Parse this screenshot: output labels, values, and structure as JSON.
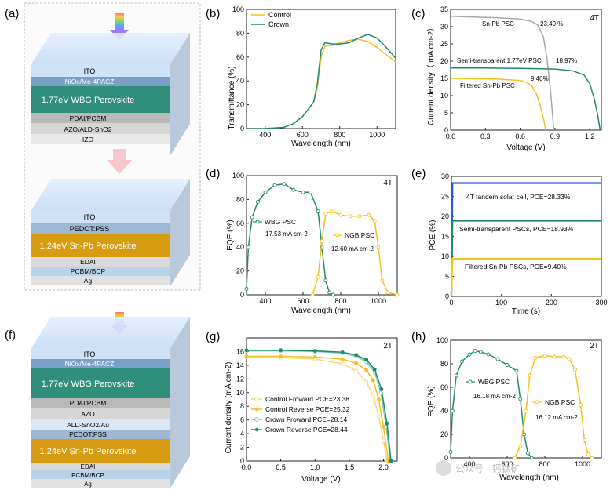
{
  "panels": {
    "a": {
      "letter": "(a)",
      "top_layers": [
        "ITO",
        "NiOx/Me-4PACZ",
        "1.77eV WBG Perovskite",
        "PDAI/PCBM",
        "AZO/ALD-SnO2",
        "IZO"
      ],
      "bottom_layers": [
        "ITO",
        "PEDOT:PSS",
        "1.24eV Sn-Pb Perovskite",
        "EDAI",
        "PCBM/BCP",
        "Ag"
      ]
    },
    "f": {
      "letter": "(f)",
      "layers": [
        "ITO",
        "NiOx/Me-4PACZ",
        "1.77eV WBG Perovskite",
        "PDAI/PCBM",
        "AZO",
        "ALD-SnO2/Au",
        "PEDOT:PSS",
        "1.24eV Sn-Pb Perovskite",
        "EDAI",
        "PCBM/BCP",
        "Ag"
      ]
    },
    "b": {
      "letter": "(b)"
    },
    "c": {
      "letter": "(c)",
      "tag": "4T"
    },
    "d": {
      "letter": "(d)",
      "tag": "4T"
    },
    "e": {
      "letter": "(e)"
    },
    "g": {
      "letter": "(g)",
      "tag": "2T"
    },
    "h": {
      "letter": "(h)",
      "tag": "2T"
    }
  },
  "colors": {
    "gold": "#f5c01a",
    "teal": "#1f8a70",
    "gray": "#a8a8a8",
    "blue": "#2a5bd7"
  },
  "watermark": "公众号 · 钙钛矿",
  "chart_data": [
    {
      "id": "b",
      "type": "line",
      "title": "",
      "xlabel": "Wavelength (nm)",
      "ylabel": "Transmittance (%)",
      "xlim": [
        300,
        1100
      ],
      "ylim": [
        0,
        100
      ],
      "xticks": [
        "400",
        "600",
        "800",
        "1000"
      ],
      "yticks": [
        "0",
        "20",
        "40",
        "60",
        "80",
        "100"
      ],
      "legend": [
        "Control",
        "Crown"
      ],
      "series": [
        {
          "name": "Control",
          "color": "#f5c01a",
          "x": [
            300,
            400,
            500,
            550,
            600,
            640,
            660,
            680,
            700,
            720,
            760,
            800,
            850,
            900,
            950,
            1000,
            1050,
            1100
          ],
          "y": [
            0,
            0,
            1,
            4,
            10,
            18,
            22,
            35,
            60,
            69,
            70,
            72,
            74,
            75,
            73,
            68,
            62,
            56
          ]
        },
        {
          "name": "Crown",
          "color": "#1f8a70",
          "x": [
            300,
            400,
            500,
            550,
            600,
            640,
            660,
            680,
            700,
            720,
            760,
            800,
            850,
            900,
            950,
            1000,
            1050,
            1100
          ],
          "y": [
            0,
            0,
            1,
            4,
            10,
            18,
            22,
            38,
            66,
            72,
            71,
            71,
            72,
            76,
            79,
            76,
            68,
            59
          ]
        }
      ]
    },
    {
      "id": "c",
      "type": "line",
      "title": "",
      "xlabel": "Voltage (V)",
      "ylabel": "Current density（ mA cm-2）",
      "xlim": [
        0,
        1.3
      ],
      "ylim": [
        0,
        35
      ],
      "xticks": [
        "0.0",
        "0.3",
        "0.6",
        "0.9",
        "1.2"
      ],
      "yticks": [
        "0",
        "5",
        "10",
        "15",
        "20",
        "25",
        "30",
        "35"
      ],
      "annotations": [
        "Sn-Pb PSC",
        "23.49 %",
        "Semi-transparent 1.77eV PSC",
        "18.97%",
        "9.40%",
        "Filtered Sn-Pb PSC"
      ],
      "series": [
        {
          "name": "Sn-Pb PSC",
          "color": "#a8a8a8",
          "x": [
            0,
            0.2,
            0.4,
            0.6,
            0.7,
            0.75,
            0.8,
            0.83,
            0.86,
            0.88,
            0.89
          ],
          "y": [
            33,
            32.8,
            32.6,
            32.2,
            31.5,
            30.5,
            27,
            21,
            12,
            4,
            0
          ]
        },
        {
          "name": "Semi-transparent 1.77eV PSC",
          "color": "#1f8a70",
          "x": [
            0,
            0.3,
            0.6,
            0.9,
            1.05,
            1.15,
            1.2,
            1.24,
            1.27,
            1.29
          ],
          "y": [
            18,
            18,
            17.9,
            17.7,
            17.2,
            16,
            13.5,
            9,
            4,
            0
          ]
        },
        {
          "name": "Filtered Sn-Pb PSC",
          "color": "#f5c01a",
          "x": [
            0,
            0.2,
            0.4,
            0.6,
            0.66,
            0.7,
            0.74,
            0.77,
            0.8,
            0.82
          ],
          "y": [
            15,
            14.9,
            14.8,
            14.4,
            13.8,
            12.8,
            10.5,
            7.5,
            3.5,
            0
          ]
        }
      ]
    },
    {
      "id": "d",
      "type": "line",
      "title": "",
      "xlabel": "Wavelength (nm)",
      "ylabel": "EQE (%)",
      "xlim": [
        300,
        1100
      ],
      "ylim": [
        0,
        100
      ],
      "xticks": [
        "400",
        "600",
        "800",
        "1000"
      ],
      "yticks": [
        "0",
        "20",
        "40",
        "60",
        "80",
        "100"
      ],
      "annotations": [
        "WBG PSC",
        "17.53 mA cm-2",
        "NGB PSC",
        "12.60 mA cm-2"
      ],
      "series": [
        {
          "name": "WBG PSC",
          "color": "#1f8a70",
          "x": [
            300,
            310,
            330,
            360,
            400,
            450,
            500,
            550,
            600,
            640,
            680,
            700,
            720,
            740,
            760
          ],
          "y": [
            5,
            40,
            65,
            78,
            86,
            92,
            93,
            88,
            86,
            86,
            70,
            40,
            12,
            2,
            0
          ]
        },
        {
          "name": "NGB PSC",
          "color": "#f5c01a",
          "x": [
            650,
            680,
            700,
            720,
            750,
            800,
            850,
            900,
            950,
            980,
            1000,
            1020,
            1050,
            1100
          ],
          "y": [
            0,
            15,
            45,
            68,
            70,
            67,
            66,
            66,
            67,
            62,
            40,
            12,
            2,
            0
          ]
        }
      ]
    },
    {
      "id": "e",
      "type": "line",
      "title": "",
      "xlabel": "Time (s)",
      "ylabel": "PCE (%)",
      "xlim": [
        0,
        300
      ],
      "ylim": [
        0,
        30
      ],
      "xticks": [
        "0",
        "100",
        "200",
        "300"
      ],
      "yticks": [
        "0",
        "5",
        "10",
        "15",
        "20",
        "25",
        "30"
      ],
      "annotations": [
        "4T tandem solar cell, PCE=28.33%",
        "Semi-transparent PSCs, PCE=18.93%",
        "Filtered Sn-Pb PSCs, PCE=9.40%"
      ],
      "series": [
        {
          "name": "4T tandem solar cell",
          "color": "#2a5bd7",
          "x": [
            0,
            2,
            4,
            300
          ],
          "y": [
            0,
            28.33,
            28.33,
            28.33
          ]
        },
        {
          "name": "Semi-transparent PSCs",
          "color": "#1f8a70",
          "x": [
            0,
            2,
            4,
            300
          ],
          "y": [
            0,
            18.93,
            18.93,
            18.93
          ]
        },
        {
          "name": "Filtered Sn-Pb PSCs",
          "color": "#f5c01a",
          "x": [
            0,
            2,
            4,
            300
          ],
          "y": [
            0,
            9.4,
            9.4,
            9.4
          ]
        }
      ]
    },
    {
      "id": "g",
      "type": "line",
      "title": "",
      "xlabel": "Voltage (V)",
      "ylabel": "Current density (mA cm-2)",
      "xlim": [
        0,
        2.2
      ],
      "ylim": [
        0,
        18
      ],
      "xticks": [
        "0.0",
        "0.5",
        "1.0",
        "1.5",
        "2.0"
      ],
      "yticks": [
        "0",
        "2",
        "4",
        "6",
        "8",
        "10",
        "12",
        "14",
        "16"
      ],
      "legend": [
        "Control Froward  PCE=23.38",
        "Control Reverse  PCE=25.32",
        "Crown  Froward  PCE=28.14",
        "Crown  Reverse  PCE=28.44"
      ],
      "series": [
        {
          "name": "Control Froward  PCE=23.38",
          "color": "#f8d97a",
          "x": [
            0,
            0.5,
            1.0,
            1.4,
            1.6,
            1.75,
            1.85,
            1.93,
            2.0,
            2.05
          ],
          "y": [
            15.2,
            15.1,
            14.9,
            14.2,
            13.2,
            11.6,
            9.5,
            6.5,
            3,
            0
          ]
        },
        {
          "name": "Control Reverse  PCE=25.32",
          "color": "#f5c01a",
          "x": [
            0,
            0.5,
            1.0,
            1.4,
            1.6,
            1.75,
            1.85,
            1.93,
            2.0,
            2.07
          ],
          "y": [
            15.3,
            15.3,
            15.2,
            14.9,
            14.3,
            13.3,
            11.8,
            9,
            5,
            0
          ]
        },
        {
          "name": "Crown  Froward  PCE=28.14",
          "color": "#7fc9b6",
          "x": [
            0,
            0.5,
            1.0,
            1.4,
            1.6,
            1.75,
            1.87,
            1.96,
            2.04,
            2.1
          ],
          "y": [
            16.1,
            16.1,
            16,
            15.8,
            15.3,
            14.5,
            13,
            10,
            5,
            0
          ]
        },
        {
          "name": "Crown  Reverse  PCE=28.44",
          "color": "#1f8a70",
          "x": [
            0,
            0.5,
            1.0,
            1.4,
            1.6,
            1.75,
            1.87,
            1.97,
            2.05,
            2.11
          ],
          "y": [
            16.2,
            16.2,
            16.1,
            15.9,
            15.5,
            14.8,
            13.4,
            10.5,
            5.5,
            0
          ]
        }
      ]
    },
    {
      "id": "h",
      "type": "line",
      "title": "",
      "xlabel": "Wavelength (nm)",
      "ylabel": "EQE (%)",
      "xlim": [
        300,
        1100
      ],
      "ylim": [
        0,
        100
      ],
      "xticks": [
        "400",
        "600",
        "800",
        "1000"
      ],
      "yticks": [
        "0",
        "20",
        "40",
        "60",
        "80",
        "100"
      ],
      "annotations": [
        "WBG PSC",
        "16.18 mA cm-2",
        "NGB PSC",
        "16.12 mA cm-2"
      ],
      "series": [
        {
          "name": "WBG PSC",
          "color": "#1f8a70",
          "x": [
            300,
            310,
            330,
            360,
            400,
            430,
            460,
            500,
            550,
            600,
            650,
            670,
            690,
            710,
            730
          ],
          "y": [
            5,
            40,
            70,
            82,
            88,
            91,
            90,
            88,
            84,
            79,
            74,
            50,
            20,
            4,
            0
          ]
        },
        {
          "name": "NGB PSC",
          "color": "#f5c01a",
          "x": [
            640,
            670,
            700,
            720,
            750,
            800,
            850,
            900,
            930,
            960,
            990,
            1010,
            1030,
            1050
          ],
          "y": [
            0,
            10,
            40,
            70,
            85,
            87,
            86,
            86,
            84,
            75,
            45,
            15,
            3,
            0
          ]
        }
      ]
    }
  ]
}
